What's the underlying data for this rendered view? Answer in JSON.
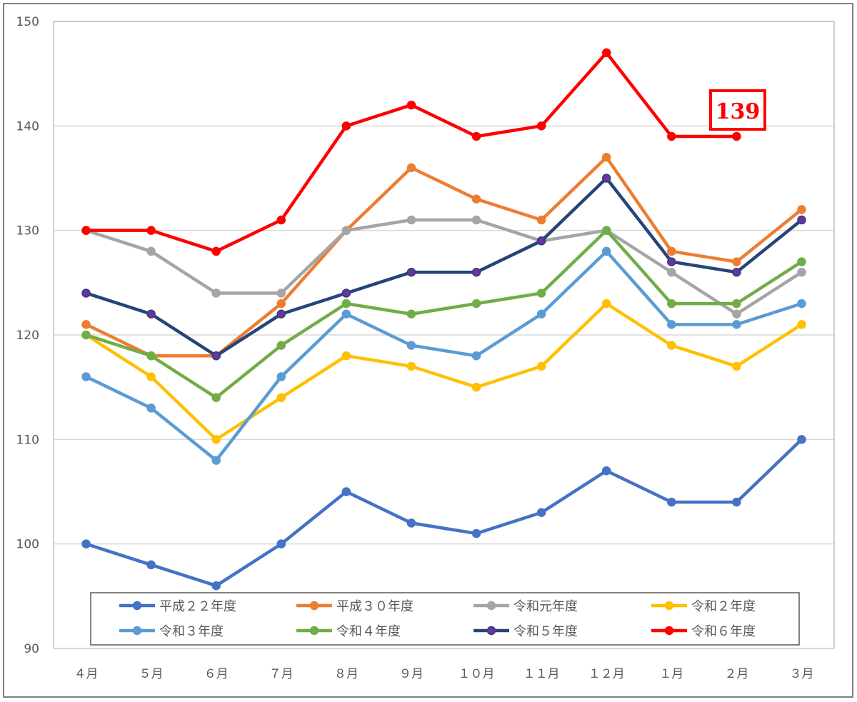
{
  "chart_data": {
    "type": "line",
    "title": "",
    "xlabel": "",
    "ylabel": "",
    "ylim": [
      90,
      150
    ],
    "yticks": [
      90,
      100,
      110,
      120,
      130,
      140,
      150
    ],
    "grid": true,
    "legend_position": "bottom-inside",
    "categories": [
      "４月",
      "５月",
      "６月",
      "７月",
      "８月",
      "９月",
      "１０月",
      "１１月",
      "１２月",
      "１月",
      "２月",
      "３月"
    ],
    "series": [
      {
        "name": "平成２２年度",
        "color": "#4472c4",
        "marker_color": "#4472c4",
        "values": [
          100,
          98,
          96,
          100,
          105,
          102,
          101,
          103,
          107,
          104,
          104,
          110
        ]
      },
      {
        "name": "平成３０年度",
        "color": "#ed7d31",
        "marker_color": "#ed7d31",
        "values": [
          121,
          118,
          118,
          123,
          130,
          136,
          133,
          131,
          137,
          128,
          127,
          132
        ]
      },
      {
        "name": "令和元年度",
        "color": "#a5a5a5",
        "marker_color": "#a5a5a5",
        "values": [
          130,
          128,
          124,
          124,
          130,
          131,
          131,
          129,
          130,
          126,
          122,
          126
        ]
      },
      {
        "name": "令和２年度",
        "color": "#ffc000",
        "marker_color": "#ffc000",
        "values": [
          120,
          116,
          110,
          114,
          118,
          117,
          115,
          117,
          123,
          119,
          117,
          121
        ]
      },
      {
        "name": "令和３年度",
        "color": "#5b9bd5",
        "marker_color": "#5b9bd5",
        "values": [
          116,
          113,
          108,
          116,
          122,
          119,
          118,
          122,
          128,
          121,
          121,
          123
        ]
      },
      {
        "name": "令和４年度",
        "color": "#70ad47",
        "marker_color": "#70ad47",
        "values": [
          120,
          118,
          114,
          119,
          123,
          122,
          123,
          124,
          130,
          123,
          123,
          127
        ]
      },
      {
        "name": "令和５年度",
        "color": "#264478",
        "marker_color": "#7030a0",
        "values": [
          124,
          122,
          118,
          122,
          124,
          126,
          126,
          129,
          135,
          127,
          126,
          131
        ]
      },
      {
        "name": "令和６年度",
        "color": "#ff0000",
        "marker_color": "#ff0000",
        "values": [
          130,
          130,
          128,
          131,
          140,
          142,
          139,
          140,
          147,
          139,
          139,
          null
        ]
      }
    ],
    "callout": {
      "text": "139",
      "series_index": 7,
      "category_index": 10,
      "color": "#ff0000"
    }
  }
}
